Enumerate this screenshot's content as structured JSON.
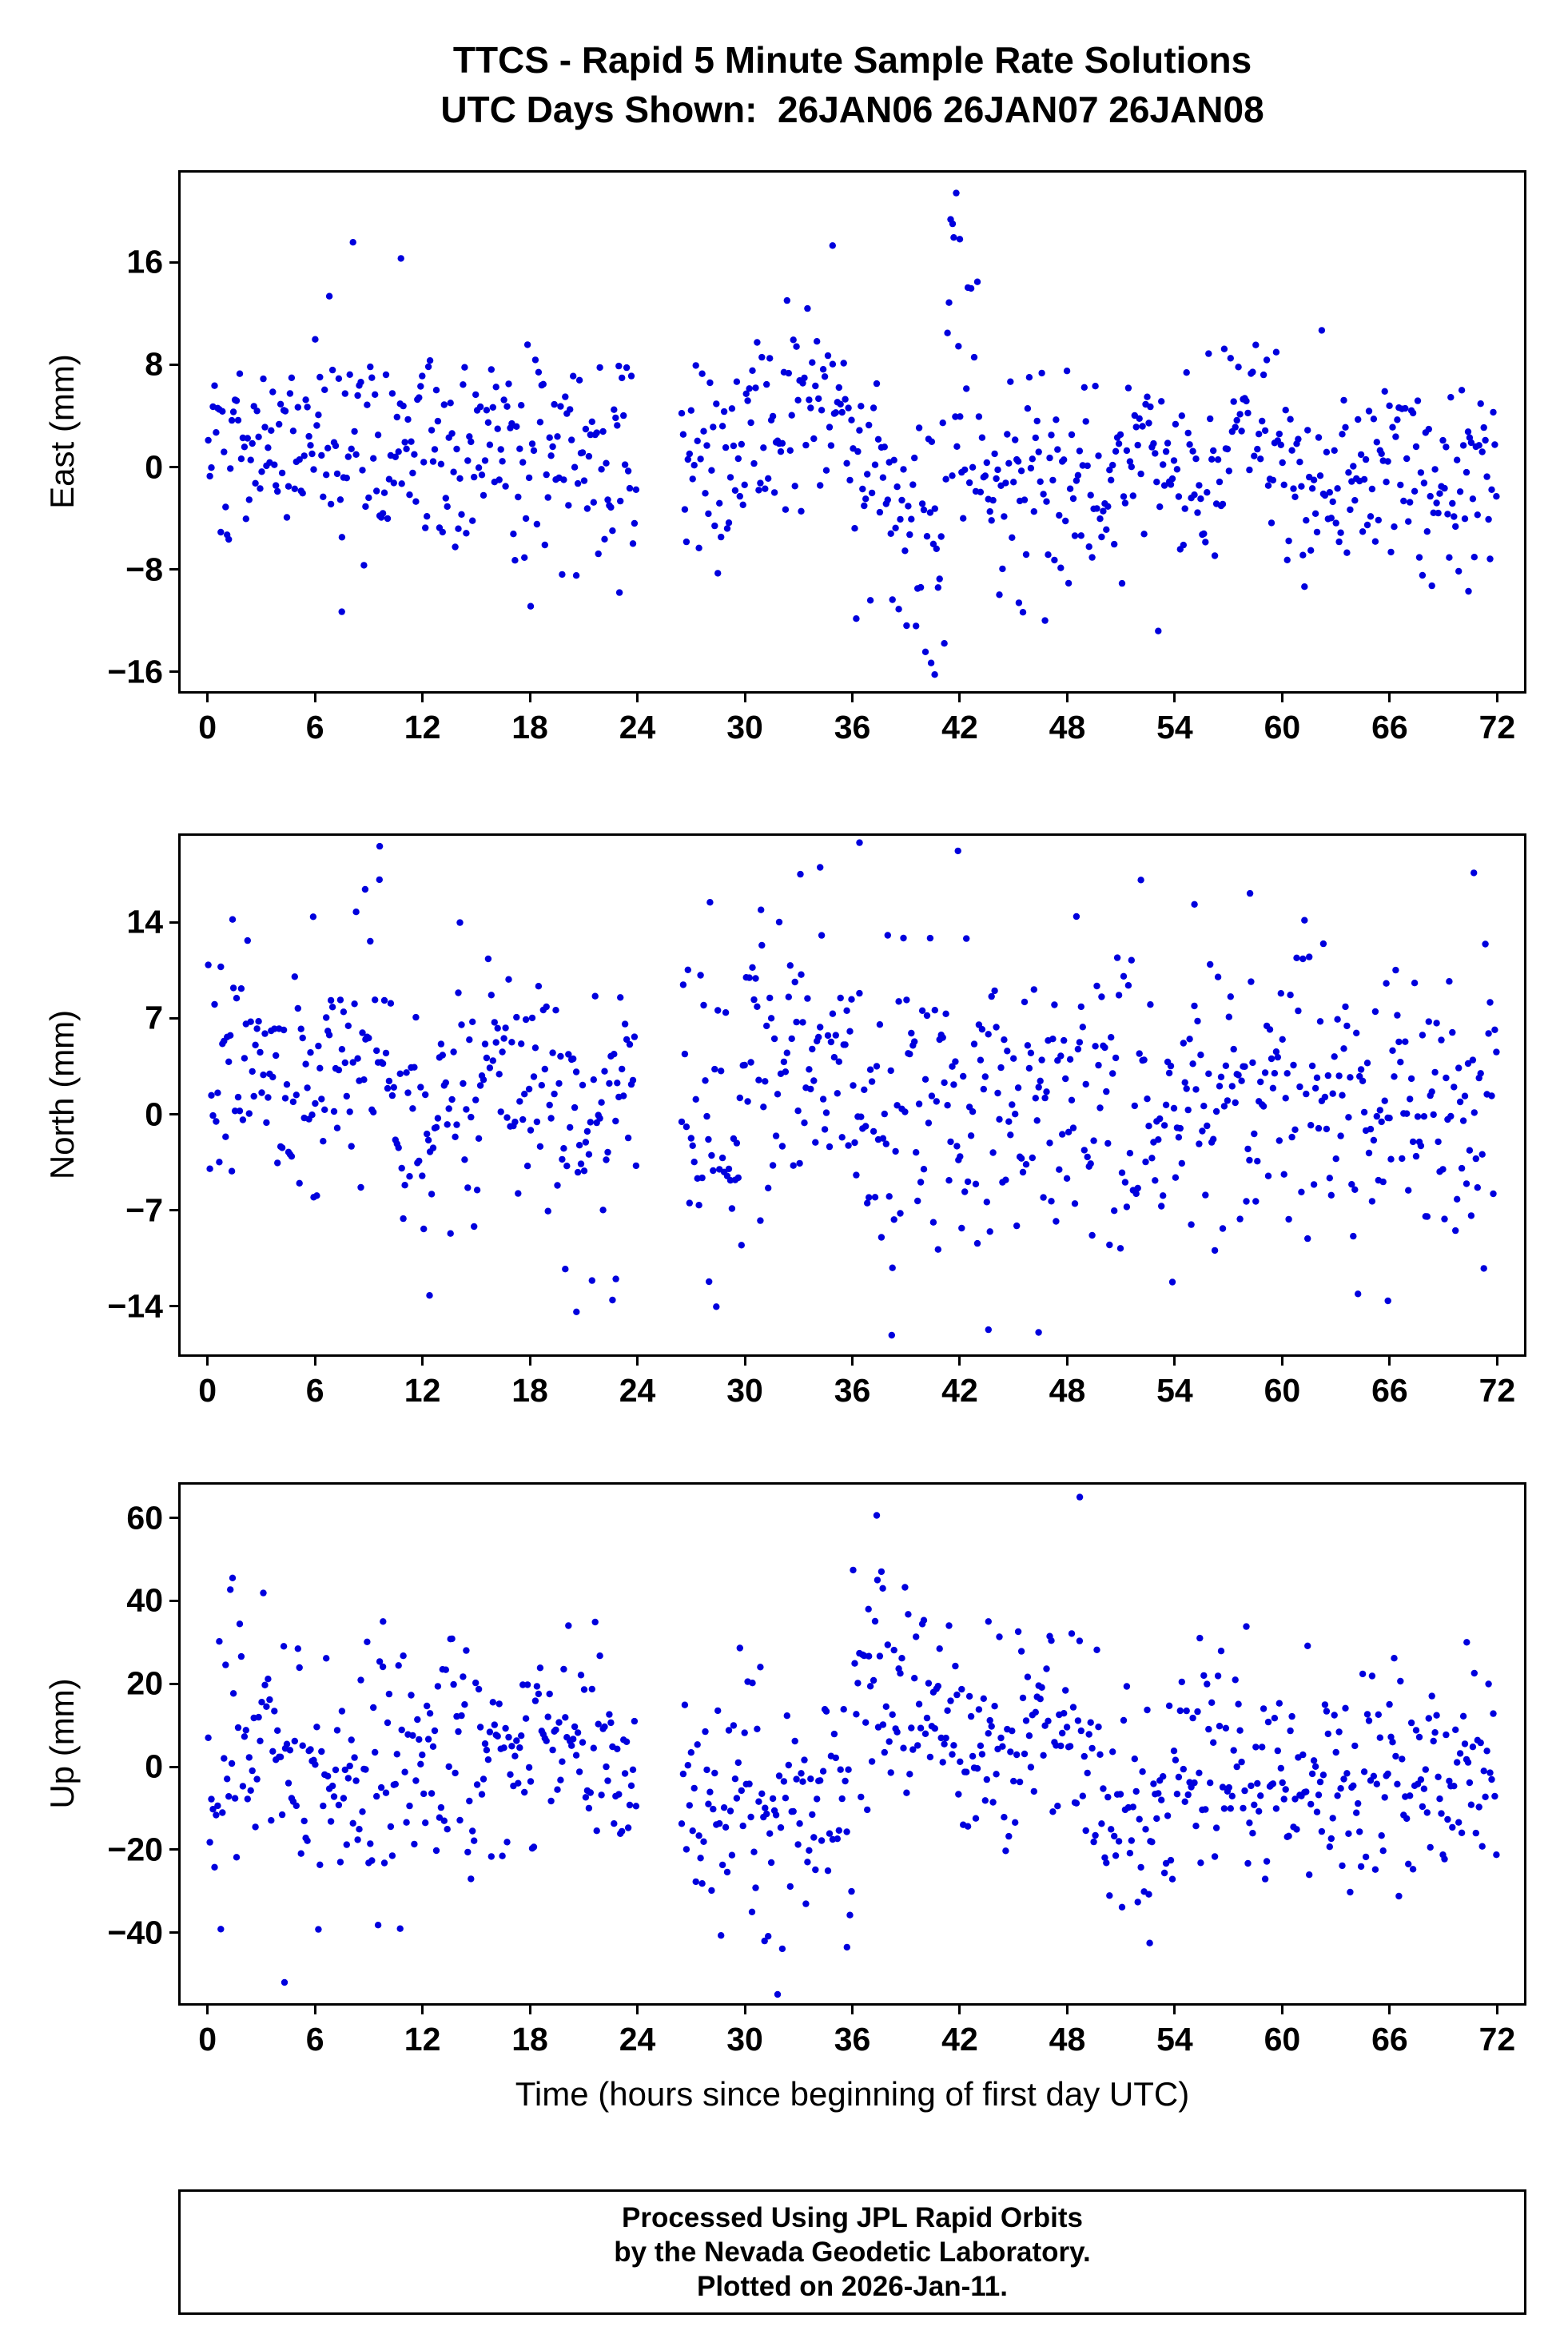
{
  "header": {
    "title_line1": "TTCS - Rapid 5 Minute Sample Rate Solutions",
    "title_line2": "UTC Days Shown:  26JAN06 26JAN07 26JAN08"
  },
  "footer": {
    "lines": [
      "Processed Using JPL Rapid Orbits",
      "by the Nevada Geodetic Laboratory.",
      "Plotted on 2026-Jan-11."
    ]
  },
  "chart_data": {
    "type": "scatter",
    "title": "TTCS - Rapid 5 Minute Sample Rate Solutions",
    "subtitle": "UTC Days Shown:  26JAN06 26JAN07 26JAN08",
    "xlabel": "Time (hours since beginning of first day UTC)",
    "x_ticks": [
      0,
      6,
      12,
      18,
      24,
      30,
      36,
      42,
      48,
      54,
      60,
      66,
      72
    ],
    "xlim": [
      -1.5,
      73.5
    ],
    "marker_color": "#0000DD",
    "marker_radius_px": 4.2,
    "sample_interval_minutes": 5,
    "hours_shown": 72,
    "data_gaps_hours": [
      [
        24.2,
        26.4
      ]
    ],
    "legend": "none",
    "grid": false,
    "panels": [
      {
        "id": "east",
        "ylabel": "East (mm)",
        "ylim": [
          -17.5,
          23.0
        ],
        "yticks": [
          -16,
          -8,
          0,
          8,
          16
        ],
        "seed": 101,
        "n": 820,
        "noise_segments": [
          [
            0,
            6,
            1.5,
            3.2
          ],
          [
            6,
            12,
            3.0,
            4.5
          ],
          [
            12,
            24,
            0.8,
            4.0
          ],
          [
            26.4,
            30,
            1.5,
            4.0
          ],
          [
            30,
            36,
            4.5,
            4.0
          ],
          [
            36,
            39.5,
            -1.5,
            5.0
          ],
          [
            39.5,
            41.2,
            -5.0,
            5.5
          ],
          [
            41.2,
            43.2,
            7.0,
            6.0
          ],
          [
            43.2,
            48,
            0.0,
            4.5
          ],
          [
            48,
            57,
            -0.5,
            4.0
          ],
          [
            57,
            60,
            4.0,
            3.5
          ],
          [
            60,
            72,
            -0.5,
            3.8
          ]
        ],
        "outliers": [
          [
            10.8,
            16.3
          ],
          [
            41.8,
            21.4
          ],
          [
            41.6,
            19.0
          ],
          [
            42.0,
            17.8
          ],
          [
            40.4,
            -15.3
          ],
          [
            40.6,
            -16.2
          ],
          [
            34.9,
            17.3
          ],
          [
            7.5,
            -11.3
          ],
          [
            23.0,
            -9.8
          ],
          [
            45.3,
            -10.6
          ],
          [
            70.4,
            -9.7
          ]
        ]
      },
      {
        "id": "north",
        "ylabel": "North (mm)",
        "ylim": [
          -17.5,
          20.3
        ],
        "yticks": [
          -14,
          -7,
          0,
          7,
          14
        ],
        "seed": 202,
        "n": 820,
        "noise_segments": [
          [
            0,
            6,
            3.0,
            4.0
          ],
          [
            6,
            10,
            4.5,
            5.0
          ],
          [
            10,
            13,
            -0.5,
            4.5
          ],
          [
            13,
            24,
            1.0,
            4.8
          ],
          [
            26.4,
            30,
            0.0,
            5.0
          ],
          [
            30,
            36,
            3.5,
            5.0
          ],
          [
            36,
            40,
            0.5,
            5.5
          ],
          [
            40,
            48,
            2.0,
            5.5
          ],
          [
            48,
            72,
            1.0,
            4.8
          ]
        ],
        "outliers": [
          [
            36.4,
            19.8
          ],
          [
            41.9,
            19.2
          ],
          [
            8.8,
            16.4
          ],
          [
            9.6,
            17.1
          ],
          [
            33.1,
            17.5
          ],
          [
            34.2,
            18.0
          ],
          [
            55.1,
            15.3
          ],
          [
            58.2,
            16.1
          ],
          [
            70.7,
            17.6
          ],
          [
            30.9,
            14.9
          ],
          [
            1.4,
            14.2
          ],
          [
            5.9,
            14.4
          ],
          [
            38.2,
            -16.1
          ],
          [
            43.6,
            -15.7
          ],
          [
            46.4,
            -15.9
          ],
          [
            20.6,
            -14.4
          ],
          [
            28.0,
            -12.2
          ],
          [
            12.4,
            -13.2
          ],
          [
            65.9,
            -13.6
          ],
          [
            22.8,
            -12.0
          ]
        ]
      },
      {
        "id": "up",
        "ylabel": "Up (mm)",
        "ylim": [
          -57,
          68
        ],
        "yticks": [
          -40,
          -20,
          0,
          20,
          40,
          60
        ],
        "seed": 303,
        "n": 820,
        "noise_segments": [
          [
            0,
            5,
            5,
            16
          ],
          [
            5,
            10,
            -2,
            16
          ],
          [
            10,
            24,
            4,
            13
          ],
          [
            26.4,
            31,
            -6,
            14
          ],
          [
            31,
            36,
            -10,
            13
          ],
          [
            36,
            38.5,
            20,
            12
          ],
          [
            38.5,
            42,
            13,
            10
          ],
          [
            42,
            46,
            7,
            12
          ],
          [
            46,
            50,
            5,
            13
          ],
          [
            50,
            54,
            -10,
            13
          ],
          [
            54,
            60,
            -2,
            13
          ],
          [
            60,
            72,
            -4,
            11
          ]
        ],
        "outliers": [
          [
            48.7,
            65
          ],
          [
            1.4,
            45.5
          ],
          [
            37.4,
            45
          ],
          [
            37.7,
            43
          ],
          [
            36.9,
            38
          ],
          [
            4.3,
            -52
          ],
          [
            31.1,
            -42
          ],
          [
            35.7,
            -43.5
          ],
          [
            52.6,
            -42.5
          ],
          [
            30.4,
            -35
          ],
          [
            9.8,
            35
          ],
          [
            43.6,
            35
          ],
          [
            70.3,
            30
          ],
          [
            55.4,
            31
          ]
        ]
      }
    ]
  }
}
